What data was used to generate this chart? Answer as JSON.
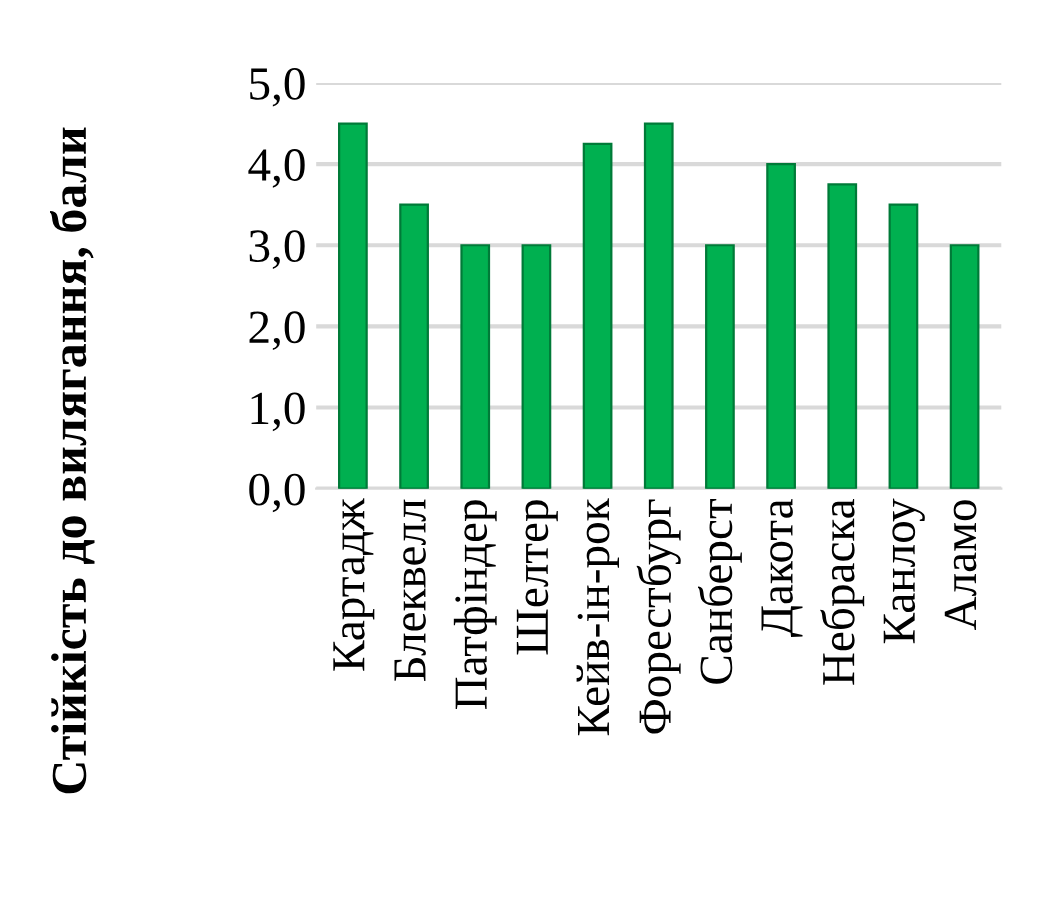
{
  "chart_data": {
    "type": "bar",
    "ylabel": "Стійкість до вилягання, бали",
    "categories": [
      "Картадж",
      "Блеквелл",
      "Патфіндер",
      "Шелтер",
      "Кейв-ін-рок",
      "Форестбург",
      "Санберст",
      "Дакота",
      "Небраска",
      "Канлоу",
      "Аламо"
    ],
    "values": [
      4.5,
      3.5,
      3.0,
      3.0,
      4.25,
      4.5,
      3.0,
      4.0,
      3.75,
      3.5,
      3.0
    ],
    "color": "#00b050",
    "ylim": [
      0,
      5
    ],
    "yticks": [
      {
        "value": 0,
        "label": "0,0"
      },
      {
        "value": 1,
        "label": "1,0"
      },
      {
        "value": 2,
        "label": "2,0"
      },
      {
        "value": 3,
        "label": "3,0"
      },
      {
        "value": 4,
        "label": "4,0"
      },
      {
        "value": 5,
        "label": "5,0"
      }
    ],
    "grid": "y",
    "legend": false
  }
}
